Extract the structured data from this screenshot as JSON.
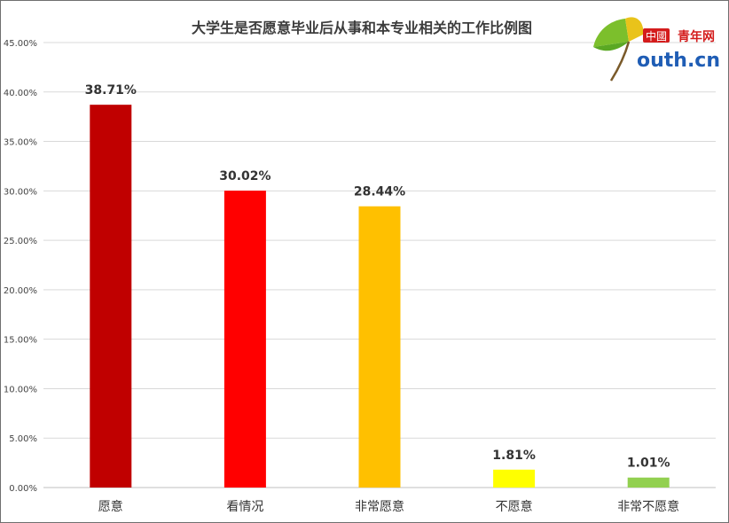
{
  "chart_data": {
    "type": "bar",
    "title": "大学生是否愿意毕业后从事和本专业相关的工作比例图",
    "categories": [
      "愿意",
      "看情况",
      "非常愿意",
      "不愿意",
      "非常不愿意"
    ],
    "values": [
      38.71,
      30.02,
      28.44,
      1.81,
      1.01
    ],
    "data_labels": [
      "38.71%",
      "30.02%",
      "28.44%",
      "1.81%",
      "1.01%"
    ],
    "colors": [
      "#c00000",
      "#ff0000",
      "#ffc000",
      "#ffff00",
      "#92d050"
    ],
    "ylim": [
      0,
      45
    ],
    "yticks": [
      0,
      5,
      10,
      15,
      20,
      25,
      30,
      35,
      40,
      45
    ],
    "ytick_labels": [
      "0.00%",
      "5.00%",
      "10.00%",
      "15.00%",
      "20.00%",
      "25.00%",
      "30.00%",
      "35.00%",
      "40.00%",
      "45.00%"
    ],
    "xlabel": "",
    "ylabel": "",
    "grid": true,
    "legend": "none"
  },
  "logo": {
    "prefix": "中國",
    "name": "青年网",
    "site": "outh.cn"
  }
}
